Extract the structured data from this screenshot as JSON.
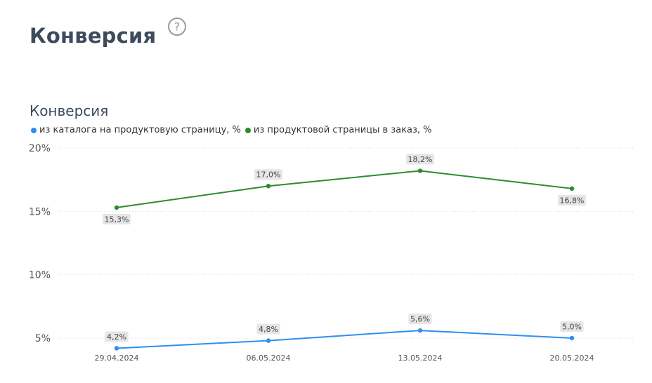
{
  "header": {
    "title": "Конверсия",
    "help_icon": "question-circle-icon"
  },
  "chart_data": {
    "type": "line",
    "title": "Конверсия",
    "xlabel": "",
    "ylabel": "",
    "categories": [
      "29.04.2024",
      "06.05.2024",
      "13.05.2024",
      "20.05.2024"
    ],
    "y_ticks": [
      "20%",
      "15%",
      "10%",
      "5%"
    ],
    "y_tick_values": [
      20,
      15,
      10,
      5
    ],
    "ylim": [
      5,
      20
    ],
    "grid": true,
    "legend_position": "top-left",
    "series": [
      {
        "name": "из каталога на продуктовую страницу, %",
        "color": "#2e8ff0",
        "values": [
          4.2,
          4.8,
          5.6,
          5.0
        ],
        "labels": [
          "4,2%",
          "4,8%",
          "5,6%",
          "5,0%"
        ],
        "label_side": [
          "above",
          "above",
          "above",
          "above"
        ]
      },
      {
        "name": "из продуктовой страницы в заказ, %",
        "color": "#2e8b2e",
        "values": [
          15.3,
          17.0,
          18.2,
          16.8
        ],
        "labels": [
          "15,3%",
          "17,0%",
          "18,2%",
          "16,8%"
        ],
        "label_side": [
          "below",
          "above",
          "above",
          "below"
        ]
      }
    ]
  }
}
